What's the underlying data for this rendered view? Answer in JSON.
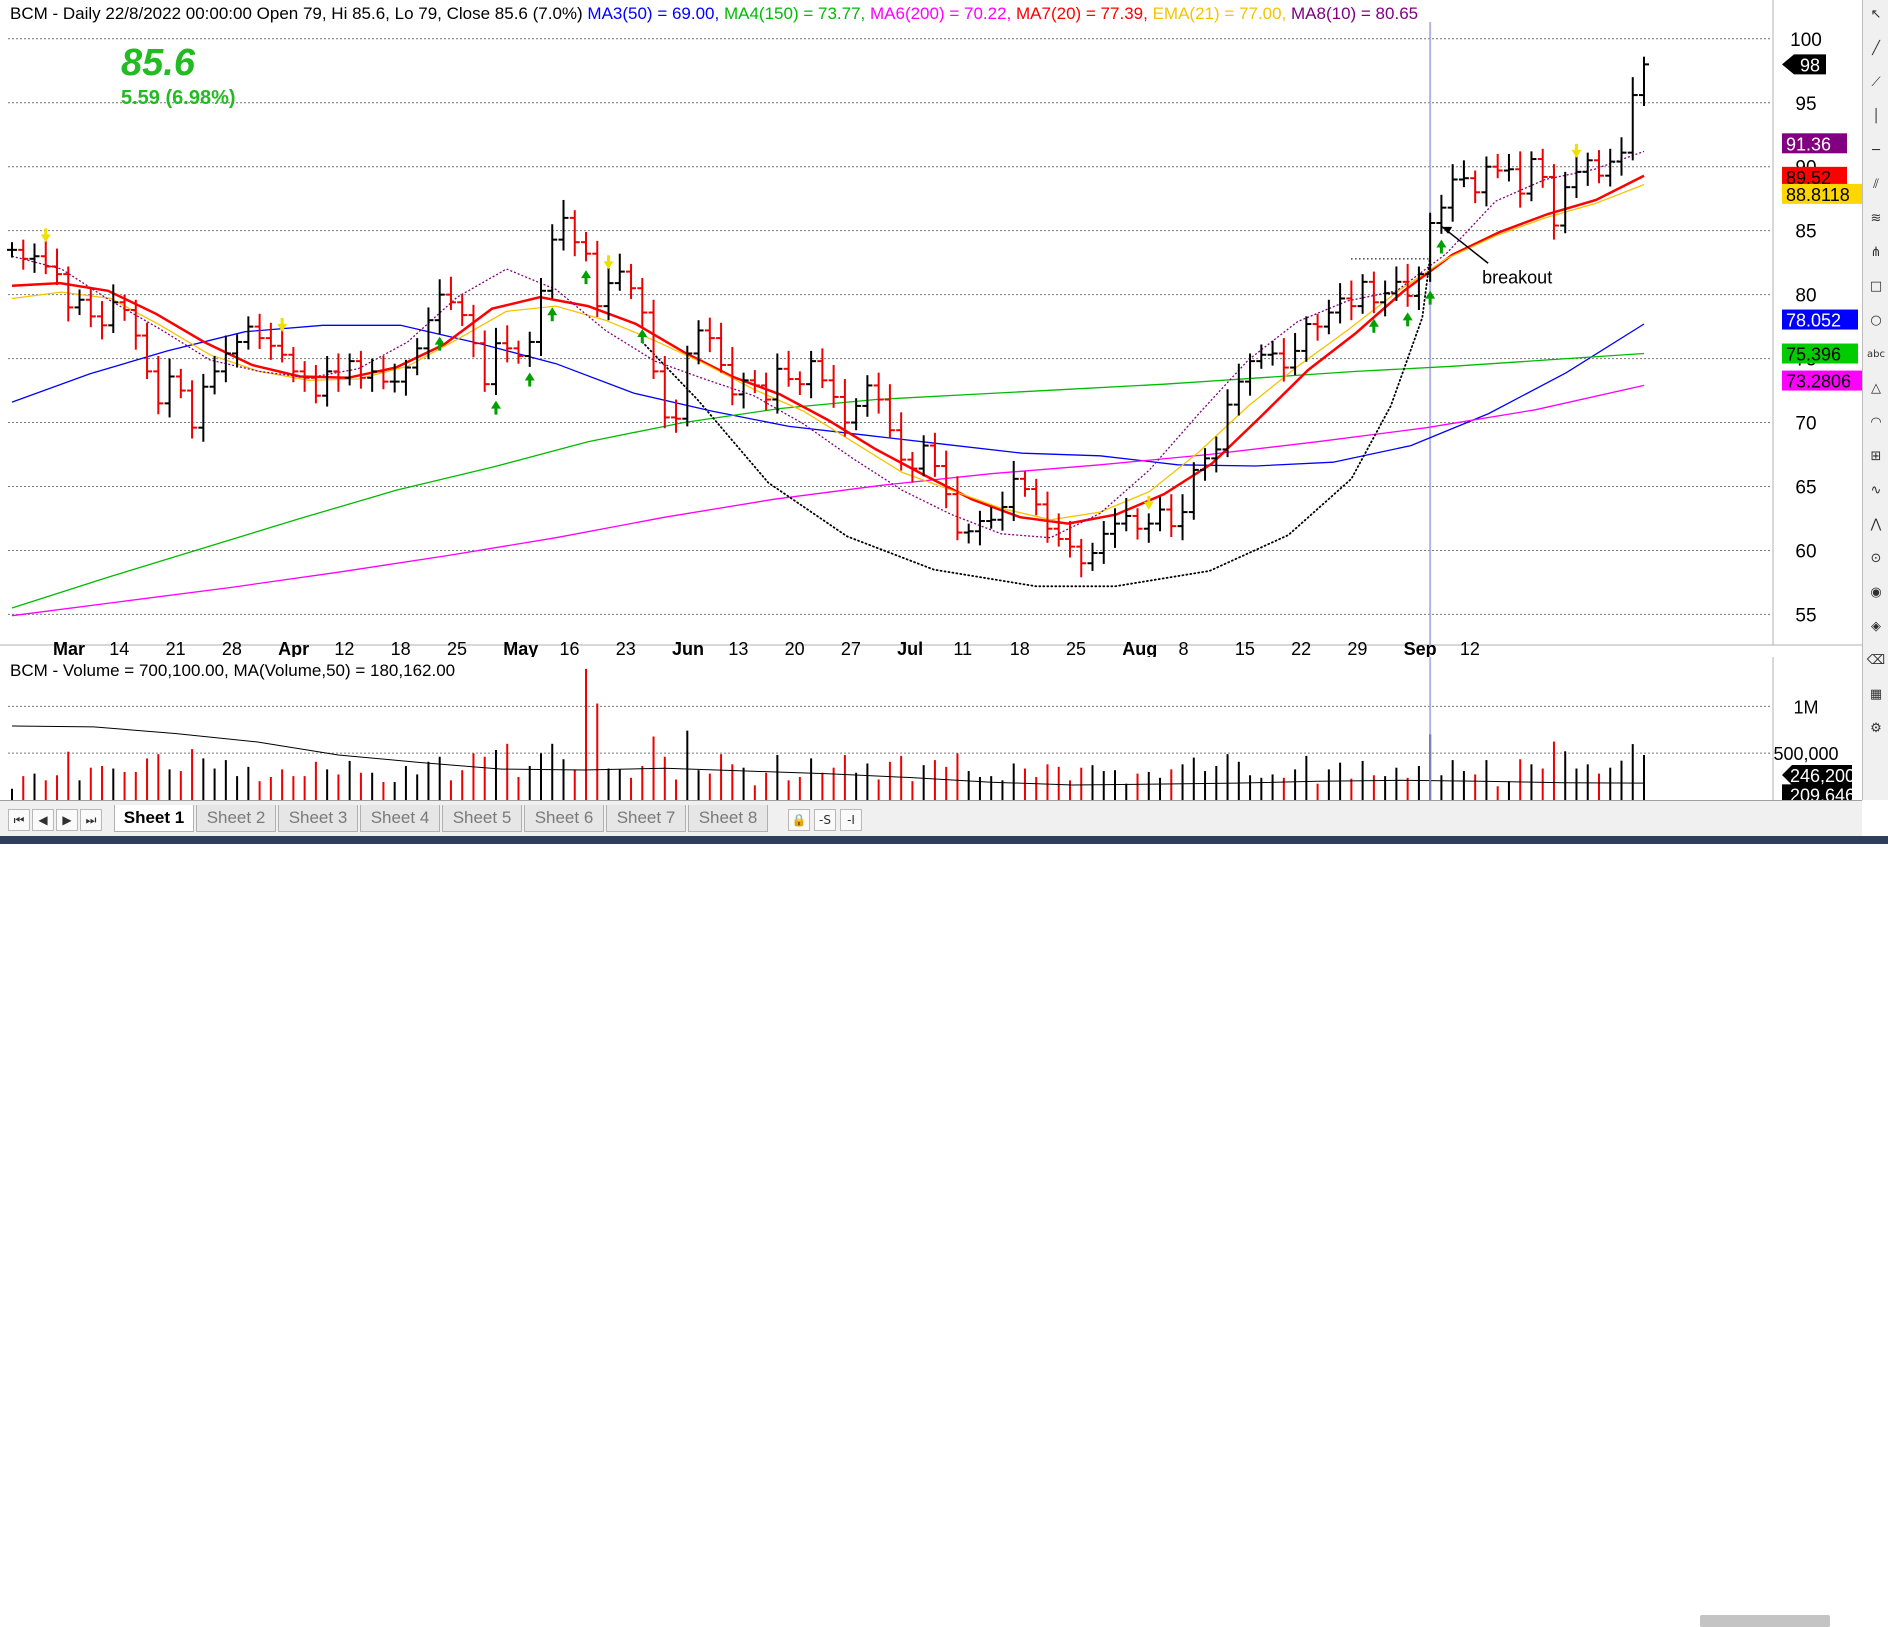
{
  "chart_data": [
    {
      "type": "ohlc",
      "title": "BCM - Daily 22/8/2022 00:00:00 Open 79, Hi 85.6, Lo 79, Close 85.6 (7.0%)",
      "indicator_labels": [
        {
          "text": "MA3(50) = 69.00,",
          "color": "#0000ff"
        },
        {
          "text": "MA4(150) = 73.77,",
          "color": "#00bb00"
        },
        {
          "text": "MA6(200) = 70.22,",
          "color": "#ff00ff"
        },
        {
          "text": "MA7(20) = 77.39,",
          "color": "#ff0000"
        },
        {
          "text": "EMA(21) = 77.00,",
          "color": "#f5c400"
        },
        {
          "text": "MA8(10) = 80.65",
          "color": "#800080"
        }
      ],
      "big_price": "85.6",
      "change": "5.59",
      "change_pct": "(6.98%)",
      "ylim": [
        53,
        101
      ],
      "yticks": [
        55,
        60,
        65,
        70,
        75,
        80,
        85,
        90,
        95,
        100
      ],
      "xticks": [
        "Mar",
        "14",
        "21",
        "28",
        "Apr",
        "12",
        "18",
        "25",
        "May",
        "16",
        "23",
        "Jun",
        "13",
        "20",
        "27",
        "Jul",
        "11",
        "18",
        "25",
        "Aug",
        "8",
        "15",
        "22",
        "29",
        "Sep",
        "12"
      ],
      "month_tick_labels": [
        "Mar",
        "Apr",
        "May",
        "Jun",
        "Jul",
        "Aug",
        "Sep"
      ],
      "bars_per_week_label": 5,
      "closes": [
        83.5,
        82.8,
        83.0,
        82.2,
        81.6,
        79.0,
        79.6,
        78.3,
        77.6,
        79.4,
        78.8,
        76.8,
        74.0,
        71.5,
        73.6,
        72.5,
        69.6,
        72.8,
        74.0,
        75.4,
        76.3,
        77.5,
        76.6,
        76.0,
        75.3,
        74.0,
        73.5,
        72.1,
        74.0,
        73.5,
        74.8,
        73.5,
        74.0,
        73.2,
        73.2,
        74.3,
        75.8,
        78.0,
        80.0,
        79.4,
        78.4,
        76.2,
        73.0,
        76.2,
        75.8,
        75.2,
        76.3,
        80.3,
        84.3,
        86.0,
        84.1,
        83.2,
        79.1,
        80.9,
        81.8,
        80.5,
        78.6,
        74.0,
        70.4,
        70.3,
        75.4,
        77.2,
        76.6,
        74.5,
        72.2,
        73.3,
        72.9,
        71.8,
        74.2,
        73.4,
        73.0,
        74.8,
        73.3,
        72.0,
        70.0,
        71.3,
        72.9,
        71.8,
        69.4,
        67.1,
        66.4,
        68.2,
        66.6,
        64.4,
        61.4,
        61.5,
        62.3,
        62.4,
        63.4,
        65.6,
        64.8,
        63.6,
        61.7,
        60.9,
        60.3,
        59.0,
        59.8,
        61.3,
        62.1,
        62.7,
        61.7,
        62.1,
        63.2,
        61.9,
        63.0,
        66.3,
        67.2,
        67.9,
        71.4,
        73.2,
        74.8,
        75.3,
        75.4,
        74.3,
        75.6,
        77.7,
        77.5,
        78.6,
        79.7,
        79.1,
        81.0,
        79.4,
        80.1,
        81.0,
        79.9,
        81.6,
        85.6,
        86.8,
        89.0,
        89.1,
        88.0,
        90.0,
        89.7,
        89.8,
        87.9,
        90.6,
        89.2,
        85.4,
        88.4,
        89.6,
        90.5,
        89.3,
        90.4,
        91.1,
        95.6,
        98.0
      ],
      "series": [
        {
          "name": "MA3(50)",
          "color": "#0000ff",
          "values": [
            71.6,
            73.8,
            75.6,
            77.1,
            77.6,
            77.6,
            76.2,
            74.6,
            72.3,
            70.9,
            69.7,
            69.0,
            68.3,
            67.6,
            67.4,
            66.7,
            66.6,
            66.9,
            68.2,
            70.7,
            73.9,
            77.7
          ]
        },
        {
          "name": "MA4(150)",
          "color": "#00bb00",
          "values": [
            55.5,
            57.9,
            60.2,
            62.5,
            64.7,
            66.5,
            68.5,
            70.0,
            71.1,
            71.8,
            72.2,
            72.6,
            73.0,
            73.5,
            74.0,
            74.4,
            74.9,
            75.4
          ]
        },
        {
          "name": "MA6(200)",
          "color": "#ff00ff",
          "values": [
            54.9,
            56.0,
            57.1,
            58.3,
            59.6,
            61.0,
            62.6,
            64.0,
            65.1,
            66.0,
            66.7,
            67.5,
            68.5,
            69.6,
            71.0,
            72.9
          ]
        },
        {
          "name": "MA7(20)",
          "color": "#ff0000",
          "values": [
            80.7,
            80.9,
            80.3,
            78.5,
            76.3,
            74.5,
            73.6,
            73.5,
            74.3,
            76.1,
            78.9,
            79.8,
            79.1,
            77.7,
            75.5,
            73.6,
            72.2,
            70.2,
            67.9,
            65.9,
            64.0,
            62.6,
            62.1,
            62.8,
            64.4,
            66.8,
            70.4,
            74.1,
            77.0,
            80.3,
            83.1,
            84.9,
            86.3,
            87.4,
            89.3
          ]
        },
        {
          "name": "EMA(21)",
          "color": "#f5c400",
          "values": [
            79.7,
            80.2,
            79.7,
            77.6,
            75.3,
            74.0,
            73.3,
            73.4,
            74.4,
            76.5,
            78.7,
            79.1,
            78.0,
            76.4,
            74.6,
            72.6,
            70.9,
            68.5,
            66.1,
            64.7,
            63.3,
            62.4,
            63.0,
            64.6,
            67.7,
            71.3,
            74.4,
            77.2,
            80.2,
            82.8,
            84.6,
            86.0,
            87.1,
            88.6
          ]
        },
        {
          "name": "MA8(10)",
          "color": "#800080",
          "values": [
            83.0,
            82.0,
            79.5,
            77.3,
            74.9,
            74.0,
            73.5,
            74.2,
            76.3,
            79.8,
            82.0,
            80.4,
            77.2,
            74.8,
            73.4,
            72.1,
            69.9,
            67.2,
            64.7,
            62.8,
            61.3,
            61.0,
            62.9,
            66.3,
            70.7,
            74.9,
            77.9,
            79.5,
            80.3,
            83.2,
            87.3,
            89.0,
            89.8,
            91.2
          ]
        }
      ],
      "cup_curve": {
        "style": "dotted",
        "color": "#000000",
        "points": [
          [
            76.3,
            0
          ],
          [
            71.8,
            0.07
          ],
          [
            65.3,
            0.16
          ],
          [
            61.1,
            0.26
          ],
          [
            58.5,
            0.37
          ],
          [
            57.2,
            0.5
          ],
          [
            57.2,
            0.6
          ],
          [
            58.4,
            0.72
          ],
          [
            61.2,
            0.82
          ],
          [
            65.6,
            0.9
          ],
          [
            71.3,
            0.95
          ],
          [
            78.2,
            0.99
          ],
          [
            83.0,
            1.0
          ]
        ]
      },
      "annotations": [
        {
          "text": "breakout",
          "color": "#000000"
        }
      ],
      "price_tags": [
        {
          "text": "98",
          "bg": "#000000",
          "fg": "#ffffff"
        },
        {
          "text": "91.36",
          "bg": "#800080",
          "fg": "#ffffff"
        },
        {
          "text": "89.52",
          "bg": "#ff0000",
          "fg": "#000000"
        },
        {
          "text": "88.8118",
          "bg": "#ffd700",
          "fg": "#000000"
        },
        {
          "text": "78.052",
          "bg": "#0000ff",
          "fg": "#ffffff"
        },
        {
          "text": "75.396",
          "bg": "#00cc00",
          "fg": "#000000"
        },
        {
          "text": "73.2806",
          "bg": "#ff00ff",
          "fg": "#000000"
        }
      ]
    },
    {
      "type": "bar",
      "title": "BCM - Volume = 700,100.00, MA(Volume,50) = 180,162.00",
      "yticks": [
        {
          "value": 500000,
          "label": "500,000"
        },
        {
          "value": 1000000,
          "label": "1M"
        }
      ],
      "ylim": [
        0,
        1420000
      ],
      "price_tags": [
        {
          "text": "246,200",
          "bg": "#000000",
          "fg": "#ffffff"
        },
        {
          "text": "209,646",
          "bg": "#000000",
          "fg": "#ffffff"
        }
      ],
      "ma_values": [
        790000,
        780000,
        710000,
        620000,
        480000,
        400000,
        330000,
        320000,
        340000,
        310000,
        280000,
        240000,
        190000,
        160000,
        170000,
        180000,
        200000,
        210000,
        200000,
        185000,
        180000
      ]
    }
  ],
  "sheet_tabs": [
    "Sheet 1",
    "Sheet 2",
    "Sheet 3",
    "Sheet 4",
    "Sheet 5",
    "Sheet 6",
    "Sheet 7",
    "Sheet 8"
  ],
  "active_sheet": "Sheet 1",
  "tab_controls": [
    {
      "icon": "lock-icon",
      "glyph": "🔒"
    },
    {
      "icon": "scale-icon",
      "glyph": "-S"
    },
    {
      "icon": "interval-icon",
      "glyph": "-I"
    }
  ],
  "nav_buttons": [
    {
      "icon": "first-sheet-icon",
      "glyph": "⏮"
    },
    {
      "icon": "prev-sheet-icon",
      "glyph": "◀"
    },
    {
      "icon": "next-sheet-icon",
      "glyph": "▶"
    },
    {
      "icon": "last-sheet-icon",
      "glyph": "⏭"
    }
  ],
  "drawing_tools": [
    {
      "icon": "cursor-icon",
      "glyph": "↖"
    },
    {
      "icon": "trendline-icon",
      "glyph": "╱"
    },
    {
      "icon": "ray-icon",
      "glyph": "⟋"
    },
    {
      "icon": "vertical-line-icon",
      "glyph": "│"
    },
    {
      "icon": "horizontal-line-icon",
      "glyph": "─"
    },
    {
      "icon": "channel-icon",
      "glyph": "⫽"
    },
    {
      "icon": "fibonacci-icon",
      "glyph": "≋"
    },
    {
      "icon": "pitchfork-icon",
      "glyph": "⋔"
    },
    {
      "icon": "rectangle-icon",
      "glyph": "□"
    },
    {
      "icon": "ellipse-icon",
      "glyph": "○"
    },
    {
      "icon": "text-icon",
      "glyph": "abc"
    },
    {
      "icon": "triangle-icon",
      "glyph": "△"
    },
    {
      "icon": "arc-icon",
      "glyph": "◠"
    },
    {
      "icon": "gann-icon",
      "glyph": "⊞"
    },
    {
      "icon": "cycles-icon",
      "glyph": "∿"
    },
    {
      "icon": "zigzag-icon",
      "glyph": "⋀"
    },
    {
      "icon": "magnet-icon",
      "glyph": "⊙"
    },
    {
      "icon": "eye-icon",
      "glyph": "◉"
    },
    {
      "icon": "palette-icon",
      "glyph": "◈"
    },
    {
      "icon": "delete-icon",
      "glyph": "⌫"
    },
    {
      "icon": "grid-icon",
      "glyph": "▦"
    },
    {
      "icon": "settings-icon",
      "glyph": "⚙"
    }
  ]
}
